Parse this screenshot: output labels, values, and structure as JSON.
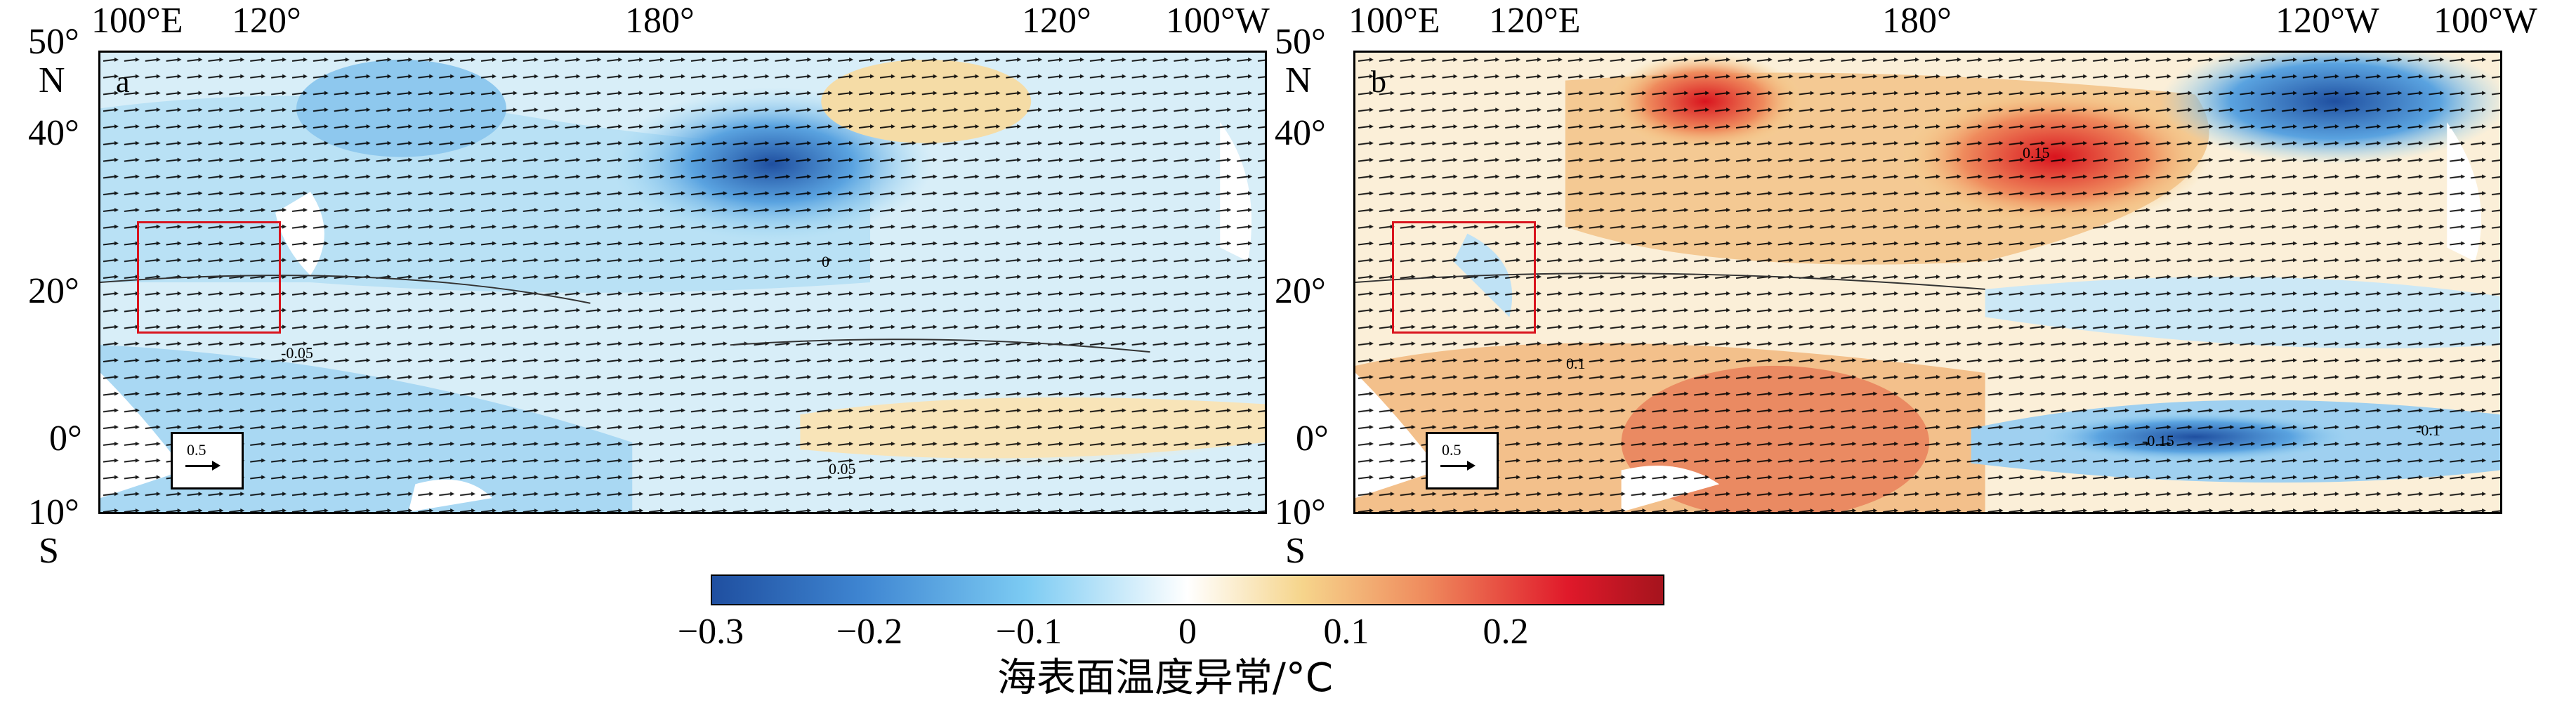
{
  "panels": [
    {
      "id": "a",
      "label": "a"
    },
    {
      "id": "b",
      "label": "b"
    }
  ],
  "axes": {
    "lon_a": [
      "100°E",
      "120°",
      "180°",
      "120°",
      "100°W"
    ],
    "lon_b": [
      "100°E",
      "120°E",
      "180°",
      "120°W",
      "100°W"
    ],
    "lat": [
      "50°",
      "N",
      "40°",
      "20°",
      "0°",
      "10°",
      "S"
    ]
  },
  "reference_vector": {
    "value": "0.5"
  },
  "contour_labels": [
    "0",
    "0.05",
    "-0.05",
    "0.1",
    "-0.1",
    "0.15",
    "-0.15"
  ],
  "colorbar": {
    "ticks": [
      "−0.3",
      "−0.2",
      "−0.1",
      "0",
      "0.1",
      "0.2"
    ],
    "label": "海表面温度异常/°C",
    "colors": [
      "#1f4fa0",
      "#3f86d2",
      "#7ccbf3",
      "#ffffff",
      "#f6d58c",
      "#ef8b5d",
      "#e0192a",
      "#a5141d"
    ]
  }
}
